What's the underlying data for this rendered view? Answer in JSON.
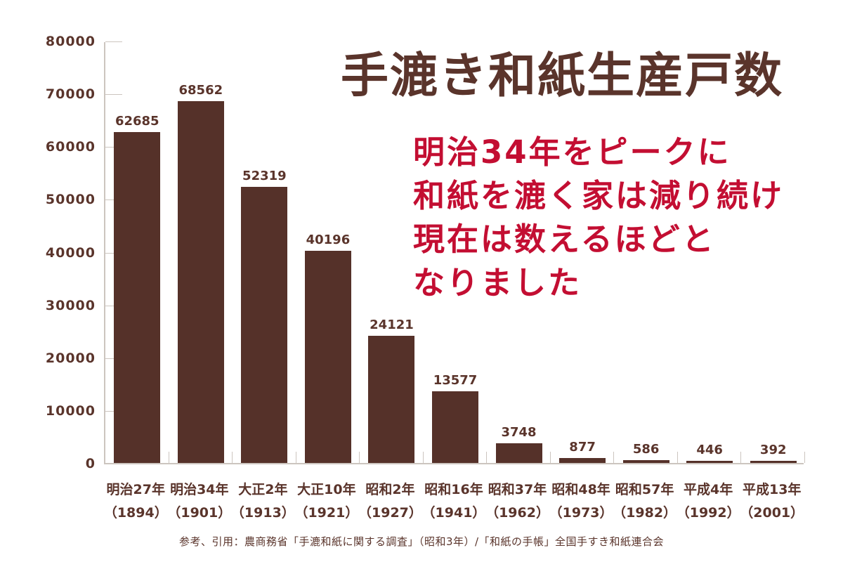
{
  "title": "手漉き和紙生産戸数",
  "annotation": {
    "lines": [
      "明治34年をピークに",
      "和紙を漉く家は減り続け",
      "現在は数えるほどと",
      "なりました"
    ]
  },
  "source_note": "参考、引用：農商務省「手漉和紙に関する調査」（昭和3年）/「和紙の手帳」全国手すき和紙連合会",
  "colors": {
    "bar": "#553129",
    "text": "#5a342b",
    "annotation": "#c30e32",
    "axis": "#ccc5bf",
    "background": "#ffffff"
  },
  "chart_data": {
    "type": "bar",
    "title": "手漉き和紙生産戸数",
    "categories": [
      "明治27年",
      "明治34年",
      "大正2年",
      "大正10年",
      "昭和2年",
      "昭和16年",
      "昭和37年",
      "昭和48年",
      "昭和57年",
      "平成4年",
      "平成13年"
    ],
    "category_years": [
      "（1894）",
      "（1901）",
      "（1913）",
      "（1921）",
      "（1927）",
      "（1941）",
      "（1962）",
      "（1973）",
      "（1982）",
      "（1992）",
      "（2001）"
    ],
    "values": [
      62685,
      68562,
      52319,
      40196,
      24121,
      13577,
      3748,
      877,
      586,
      446,
      392
    ],
    "value_labels": true,
    "xlabel": "",
    "ylabel": "",
    "ylim": [
      0,
      80000
    ],
    "yticks": [
      0,
      10000,
      20000,
      30000,
      40000,
      50000,
      60000,
      70000,
      80000
    ],
    "grid": false,
    "legend": "none"
  }
}
